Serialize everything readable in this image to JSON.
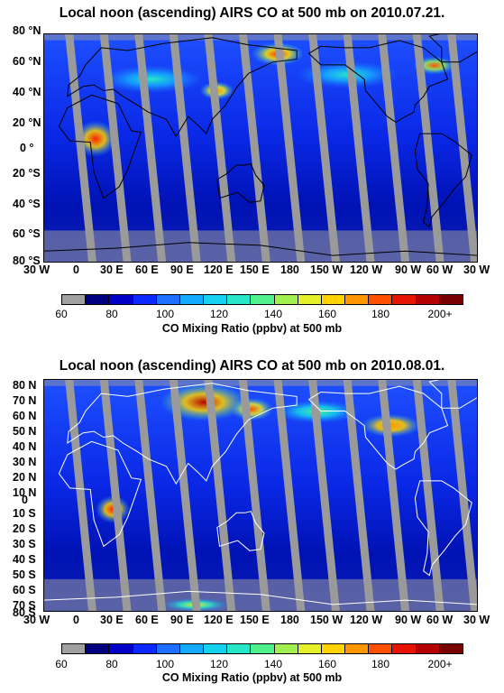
{
  "panels": [
    {
      "title": "Local  noon (ascending) AIRS CO at 500 mb on 2010.07.21.",
      "lat_labels": [
        "80 °N",
        "60 °N",
        "40 °N",
        "20 °N",
        "0 °",
        "20 °S",
        "40 °S",
        "60 °S",
        "80 °S"
      ],
      "lon_labels": [
        "30 W",
        "0",
        "30 E",
        "60 E",
        "90 E",
        "120 E",
        "150 E",
        "180",
        "150 W",
        "120 W",
        "90 W",
        "60 W",
        "30 W"
      ],
      "coastline_color": "#000000"
    },
    {
      "title": "Local  noon (ascending) AIRS CO at 500 mb on 2010.08.01.",
      "lat_labels": [
        "80 N",
        "70 N",
        "60 N",
        "50 N",
        "40 N",
        "30 N",
        "20 N",
        "10 N",
        "0",
        "10 S",
        "20 S",
        "30 S",
        "40 S",
        "50 S",
        "60 S",
        "70 S",
        "80 S"
      ],
      "lon_labels": [
        "30 W",
        "0",
        "30 E",
        "60 E",
        "90 E",
        "120 E",
        "150 E",
        "180",
        "150 W",
        "120 W",
        "90 W",
        "60 W",
        "30 W"
      ],
      "coastline_color": "#ffffff"
    }
  ],
  "colorbar": {
    "tick_labels": [
      "60",
      "80",
      "100",
      "120",
      "140",
      "160",
      "180",
      "200+"
    ],
    "title": "CO Mixing Ratio (ppbv) at 500 mb",
    "colors": [
      "#a0a0a0",
      "#000080",
      "#0000c8",
      "#0a28ff",
      "#1e6eff",
      "#14aaff",
      "#14d2f0",
      "#28e6c8",
      "#50f08c",
      "#a0f050",
      "#e6f028",
      "#ffd200",
      "#ff9600",
      "#ff5000",
      "#e61400",
      "#b40000",
      "#7a0000"
    ],
    "nodata_color": "#a0a0a0"
  },
  "chart_data": [
    {
      "type": "heatmap",
      "title": "Local  noon (ascending) AIRS CO at 500 mb on 2010.07.21.",
      "x_range": [
        -30,
        330
      ],
      "y_range": [
        -80,
        80
      ],
      "value_range": [
        60,
        200
      ],
      "colorbar_label": "CO Mixing Ratio (ppbv) at 500 mb"
    },
    {
      "type": "heatmap",
      "title": "Local  noon (ascending) AIRS CO at 500 mb on 2010.08.01.",
      "x_range": [
        -30,
        330
      ],
      "y_range": [
        -80,
        80
      ],
      "value_range": [
        60,
        200
      ],
      "colorbar_label": "CO Mixing Ratio (ppbv) at 500 mb"
    }
  ]
}
